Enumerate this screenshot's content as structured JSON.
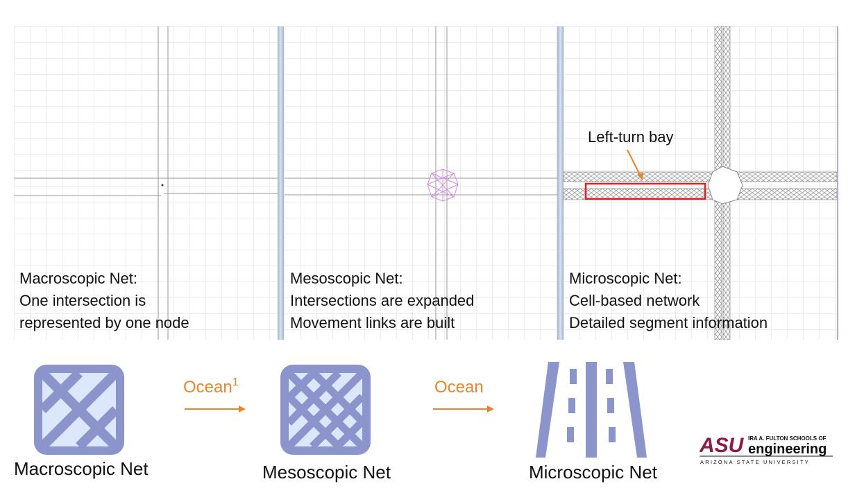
{
  "panels": [
    {
      "title": "Macroscopic Net:",
      "lines": [
        "One intersection is",
        "represented by one node"
      ]
    },
    {
      "title": "Mesoscopic Net:",
      "lines": [
        "Intersections are expanded",
        "Movement links are built"
      ]
    },
    {
      "title": "Microscopic Net:",
      "lines": [
        "Cell-based network",
        "Detailed segment information"
      ],
      "annotation": "Left-turn bay"
    }
  ],
  "icons": [
    {
      "caption": "Macroscopic Net",
      "icon": "macro-grid-icon"
    },
    {
      "caption": "Mesoscopic Net",
      "icon": "meso-grid-icon"
    },
    {
      "caption": "Microscopic Net",
      "icon": "lanes-icon"
    }
  ],
  "transitions": [
    {
      "label": "Ocean",
      "superscript": "1"
    },
    {
      "label": "Ocean",
      "superscript": ""
    }
  ],
  "logo": {
    "mark": "ASU",
    "line1": "IRA A. FULTON SCHOOLS OF",
    "line2": "engineering",
    "line3": "ARIZONA STATE UNIVERSITY"
  },
  "colors": {
    "accent": "#E8852A",
    "icon": "#8B94CB",
    "icon_fill": "#DCE7FB",
    "highlight": "#E02020",
    "meso_links": "#D28BE6",
    "logo_red": "#8C1D40"
  }
}
